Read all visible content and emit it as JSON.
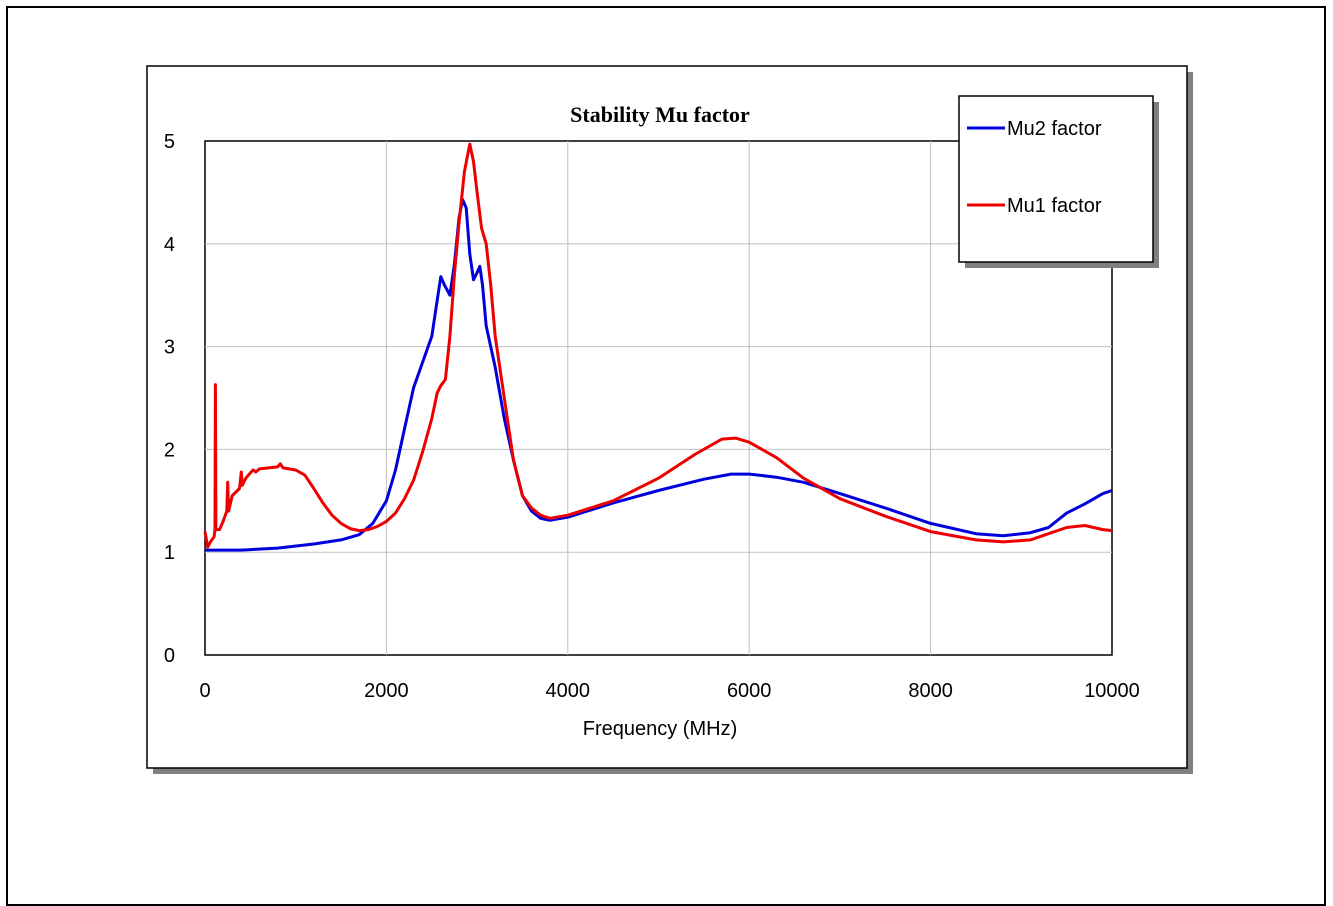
{
  "chart_data": {
    "type": "line",
    "title": "Stability Mu factor",
    "xlabel": "Frequency (MHz)",
    "ylabel": "",
    "xlim": [
      0,
      10000
    ],
    "ylim": [
      0,
      5
    ],
    "xticks": [
      0,
      2000,
      4000,
      6000,
      8000,
      10000
    ],
    "yticks": [
      0,
      1,
      2,
      3,
      4,
      5
    ],
    "grid": true,
    "legend_position": "top-right",
    "series": [
      {
        "name": "Mu2 factor",
        "color": "#0000dd",
        "points": [
          [
            0,
            1.02
          ],
          [
            400,
            1.02
          ],
          [
            800,
            1.04
          ],
          [
            1200,
            1.08
          ],
          [
            1500,
            1.12
          ],
          [
            1700,
            1.17
          ],
          [
            1850,
            1.28
          ],
          [
            2000,
            1.5
          ],
          [
            2100,
            1.8
          ],
          [
            2200,
            2.2
          ],
          [
            2300,
            2.6
          ],
          [
            2400,
            2.85
          ],
          [
            2500,
            3.1
          ],
          [
            2560,
            3.45
          ],
          [
            2600,
            3.68
          ],
          [
            2640,
            3.6
          ],
          [
            2700,
            3.5
          ],
          [
            2750,
            3.8
          ],
          [
            2800,
            4.25
          ],
          [
            2840,
            4.43
          ],
          [
            2880,
            4.35
          ],
          [
            2920,
            3.9
          ],
          [
            2960,
            3.65
          ],
          [
            3000,
            3.72
          ],
          [
            3030,
            3.78
          ],
          [
            3060,
            3.6
          ],
          [
            3100,
            3.2
          ],
          [
            3200,
            2.8
          ],
          [
            3300,
            2.3
          ],
          [
            3400,
            1.9
          ],
          [
            3500,
            1.55
          ],
          [
            3600,
            1.4
          ],
          [
            3700,
            1.33
          ],
          [
            3800,
            1.31
          ],
          [
            4000,
            1.34
          ],
          [
            4500,
            1.48
          ],
          [
            5000,
            1.6
          ],
          [
            5500,
            1.71
          ],
          [
            5800,
            1.76
          ],
          [
            6000,
            1.76
          ],
          [
            6300,
            1.73
          ],
          [
            6600,
            1.68
          ],
          [
            7000,
            1.57
          ],
          [
            7500,
            1.43
          ],
          [
            8000,
            1.28
          ],
          [
            8500,
            1.18
          ],
          [
            8800,
            1.16
          ],
          [
            9100,
            1.19
          ],
          [
            9300,
            1.24
          ],
          [
            9500,
            1.38
          ],
          [
            9700,
            1.47
          ],
          [
            9900,
            1.57
          ],
          [
            10000,
            1.6
          ]
        ]
      },
      {
        "name": "Mu1 factor",
        "color": "#ee0000",
        "points": [
          [
            0,
            1.2
          ],
          [
            30,
            1.05
          ],
          [
            60,
            1.1
          ],
          [
            100,
            1.15
          ],
          [
            110,
            1.22
          ],
          [
            115,
            2.63
          ],
          [
            120,
            1.22
          ],
          [
            160,
            1.22
          ],
          [
            200,
            1.3
          ],
          [
            240,
            1.4
          ],
          [
            250,
            1.68
          ],
          [
            260,
            1.4
          ],
          [
            300,
            1.55
          ],
          [
            380,
            1.62
          ],
          [
            400,
            1.78
          ],
          [
            410,
            1.65
          ],
          [
            450,
            1.72
          ],
          [
            500,
            1.77
          ],
          [
            530,
            1.8
          ],
          [
            560,
            1.78
          ],
          [
            600,
            1.81
          ],
          [
            700,
            1.82
          ],
          [
            800,
            1.83
          ],
          [
            830,
            1.86
          ],
          [
            860,
            1.82
          ],
          [
            1000,
            1.8
          ],
          [
            1100,
            1.75
          ],
          [
            1200,
            1.62
          ],
          [
            1300,
            1.48
          ],
          [
            1400,
            1.36
          ],
          [
            1500,
            1.28
          ],
          [
            1600,
            1.23
          ],
          [
            1700,
            1.21
          ],
          [
            1800,
            1.22
          ],
          [
            1900,
            1.25
          ],
          [
            2000,
            1.3
          ],
          [
            2100,
            1.38
          ],
          [
            2200,
            1.52
          ],
          [
            2300,
            1.7
          ],
          [
            2400,
            1.98
          ],
          [
            2500,
            2.3
          ],
          [
            2560,
            2.55
          ],
          [
            2600,
            2.62
          ],
          [
            2650,
            2.68
          ],
          [
            2700,
            3.1
          ],
          [
            2750,
            3.7
          ],
          [
            2800,
            4.2
          ],
          [
            2860,
            4.7
          ],
          [
            2920,
            4.97
          ],
          [
            2960,
            4.8
          ],
          [
            3000,
            4.5
          ],
          [
            3050,
            4.15
          ],
          [
            3100,
            4.0
          ],
          [
            3150,
            3.6
          ],
          [
            3200,
            3.1
          ],
          [
            3300,
            2.5
          ],
          [
            3400,
            1.9
          ],
          [
            3500,
            1.55
          ],
          [
            3600,
            1.43
          ],
          [
            3700,
            1.36
          ],
          [
            3800,
            1.33
          ],
          [
            4000,
            1.36
          ],
          [
            4500,
            1.5
          ],
          [
            5000,
            1.72
          ],
          [
            5400,
            1.95
          ],
          [
            5700,
            2.1
          ],
          [
            5850,
            2.11
          ],
          [
            6000,
            2.07
          ],
          [
            6300,
            1.92
          ],
          [
            6600,
            1.72
          ],
          [
            7000,
            1.52
          ],
          [
            7500,
            1.35
          ],
          [
            8000,
            1.2
          ],
          [
            8500,
            1.12
          ],
          [
            8800,
            1.1
          ],
          [
            9100,
            1.12
          ],
          [
            9300,
            1.18
          ],
          [
            9500,
            1.24
          ],
          [
            9700,
            1.26
          ],
          [
            9900,
            1.22
          ],
          [
            10000,
            1.21
          ]
        ]
      }
    ]
  }
}
